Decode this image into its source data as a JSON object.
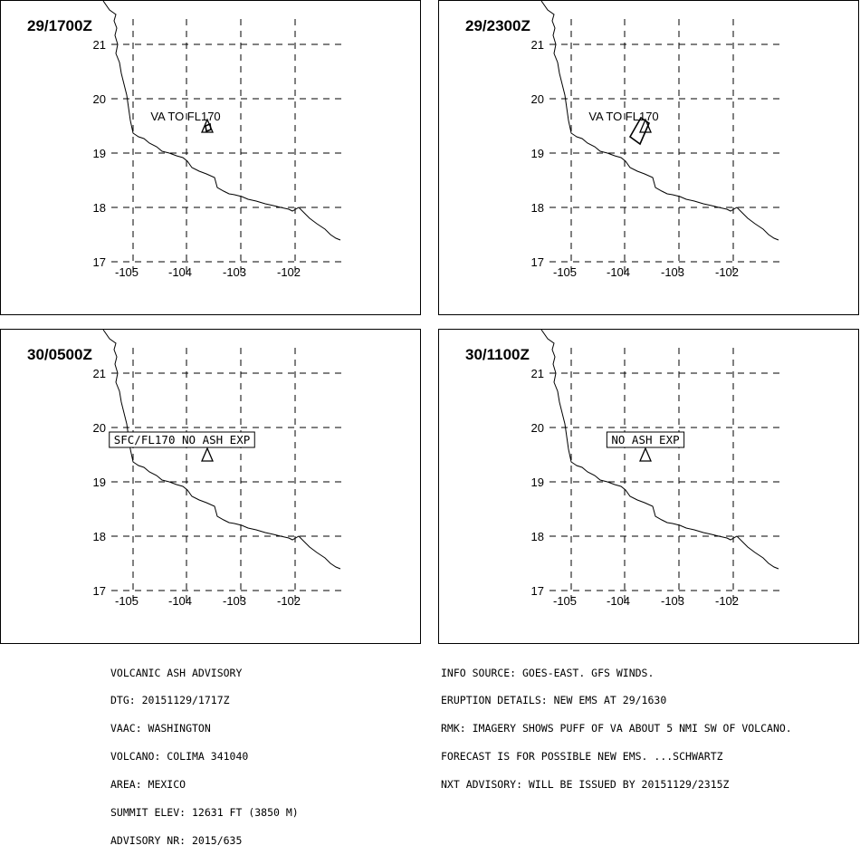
{
  "panels": [
    {
      "time_label": "29/1700Z",
      "annotation": {
        "text": "VA TO FL170",
        "boxed": false
      },
      "ash_area": "point"
    },
    {
      "time_label": "29/2300Z",
      "annotation": {
        "text": "VA TO FL170",
        "boxed": false
      },
      "ash_area": "plume-sw"
    },
    {
      "time_label": "30/0500Z",
      "annotation": {
        "text": "SFC/FL170 NO ASH EXP",
        "boxed": true
      },
      "ash_area": "none"
    },
    {
      "time_label": "30/1100Z",
      "annotation": {
        "text": "NO ASH EXP",
        "boxed": true
      },
      "ash_area": "none"
    }
  ],
  "map": {
    "lon_ticks": [
      "-105",
      "-104",
      "-103",
      "-102"
    ],
    "lat_ticks": [
      "21",
      "20",
      "19",
      "18",
      "17"
    ],
    "volcano_marker": "triangle-icon"
  },
  "advisory_left": [
    "VOLCANIC ASH ADVISORY",
    "DTG: 20151129/1717Z",
    "VAAC: WASHINGTON",
    "VOLCANO: COLIMA 341040",
    "AREA: MEXICO",
    "SUMMIT ELEV: 12631 FT (3850 M)",
    "ADVISORY NR: 2015/635"
  ],
  "advisory_right": [
    "INFO SOURCE: GOES-EAST. GFS WINDS.",
    "ERUPTION DETAILS: NEW EMS AT 29/1630",
    "RMK: IMAGERY SHOWS PUFF OF VA ABOUT 5 NMI SW OF VOLCANO.",
    "FORECAST IS FOR POSSIBLE NEW EMS. ...SCHWARTZ",
    "NXT ADVISORY: WILL BE ISSUED BY 20151129/2315Z"
  ]
}
